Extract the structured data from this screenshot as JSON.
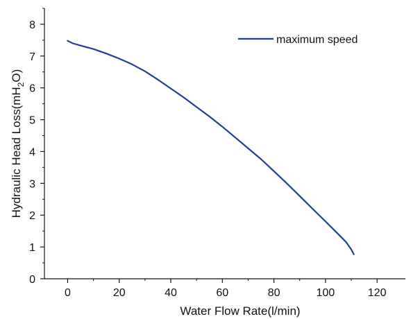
{
  "chart_data": {
    "type": "line",
    "title": "",
    "xlabel": "Water Flow Rate(l/min)",
    "ylabel": {
      "prefix": "Hydraulic Head Loss(mH",
      "sub": "2",
      "suffix": "O)"
    },
    "xlim": [
      -9,
      131
    ],
    "ylim": [
      0,
      8.5
    ],
    "xticks": [
      0,
      20,
      40,
      60,
      80,
      100,
      120
    ],
    "yticks": [
      0,
      1,
      2,
      3,
      4,
      5,
      6,
      7,
      8
    ],
    "grid": false,
    "legend_position": "top-right",
    "series": [
      {
        "name": "maximum speed",
        "color": "#1f3d99",
        "x": [
          0,
          2,
          5,
          10,
          15,
          20,
          25,
          30,
          35,
          40,
          45,
          50,
          55,
          60,
          65,
          70,
          75,
          80,
          85,
          90,
          95,
          100,
          105,
          108,
          110,
          111
        ],
        "y": [
          7.48,
          7.4,
          7.33,
          7.22,
          7.08,
          6.92,
          6.74,
          6.52,
          6.26,
          5.98,
          5.7,
          5.4,
          5.1,
          4.78,
          4.44,
          4.1,
          3.76,
          3.38,
          3.0,
          2.6,
          2.2,
          1.8,
          1.4,
          1.15,
          0.92,
          0.77
        ]
      }
    ]
  }
}
